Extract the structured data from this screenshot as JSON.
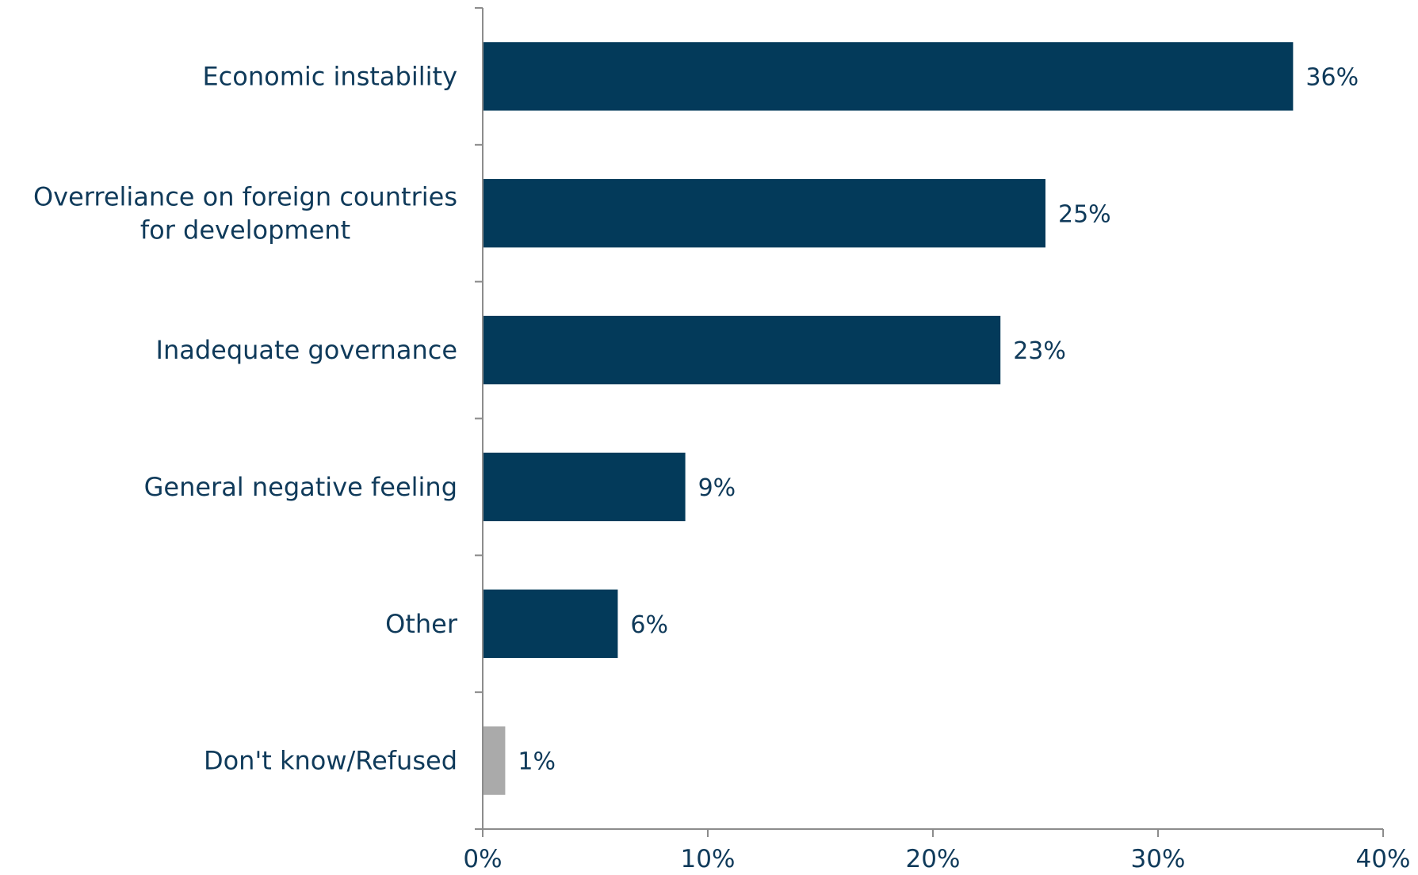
{
  "chart_data": {
    "type": "bar",
    "orientation": "horizontal",
    "categories": [
      [
        "Economic instability"
      ],
      [
        "Overreliance on foreign countries",
        "for development"
      ],
      [
        "Inadequate governance"
      ],
      [
        "General negative feeling"
      ],
      [
        "Other"
      ],
      [
        "Don't know/Refused"
      ]
    ],
    "values": [
      36,
      25,
      23,
      9,
      6,
      1
    ],
    "value_labels": [
      "36%",
      "25%",
      "23%",
      "9%",
      "6%",
      "1%"
    ],
    "bar_colors": [
      "#033a5a",
      "#033a5a",
      "#033a5a",
      "#033a5a",
      "#033a5a",
      "#aaaaaa"
    ],
    "xlim": [
      0,
      40
    ],
    "xticks": [
      0,
      10,
      20,
      30,
      40
    ],
    "xtick_labels": [
      "0%",
      "10%",
      "20%",
      "30%",
      "40%"
    ],
    "grid": false,
    "legend": "none"
  }
}
